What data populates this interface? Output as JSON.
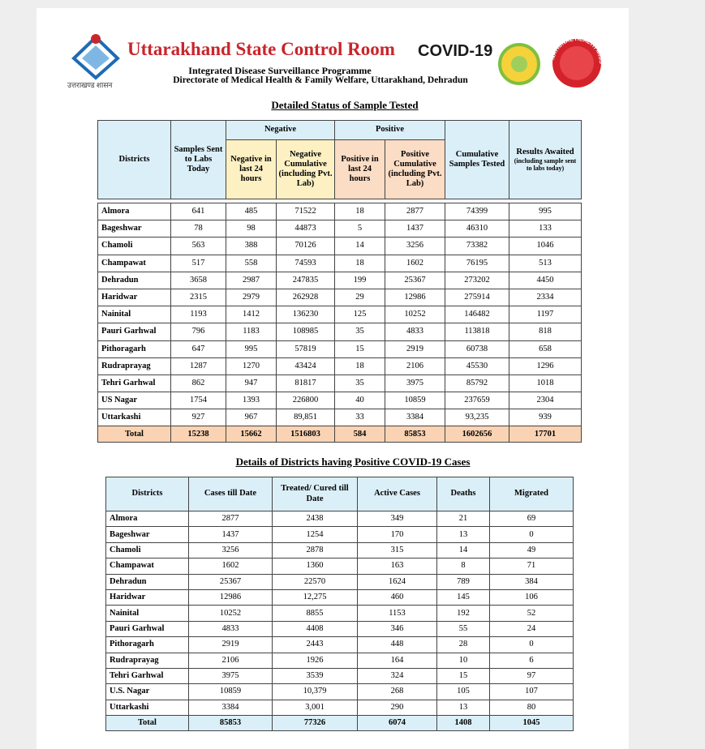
{
  "header": {
    "title": "Uttarakhand State Control Room",
    "covid": "COVID-19",
    "subtitle": "Integrated Disease Surveillance Programme",
    "directorate": "Directorate of Medical Health & Family Welfare, Uttarakhand, Dehradun",
    "govt_label": "उत्तराखण्ड शासन",
    "nhm": "NATIONAL HEALTH MISSION"
  },
  "table1": {
    "title": "Detailed Status of Sample Tested",
    "group_headers": [
      "Negative",
      "Positive"
    ],
    "columns": [
      "Districts",
      "Samples Sent to Labs Today",
      "Negative in last 24 hours",
      "Negative Cumulative (including Pvt. Lab)",
      "Positive in last 24 hours",
      "Positive Cumulative (including Pvt. Lab)",
      "Cumulative Samples Tested",
      "Results Awaited"
    ],
    "results_note": "(including sample sent to labs today)",
    "rows": [
      [
        "Almora",
        641,
        485,
        71522,
        18,
        2877,
        74399,
        995
      ],
      [
        "Bageshwar",
        78,
        98,
        44873,
        5,
        1437,
        46310,
        133
      ],
      [
        "Chamoli",
        563,
        388,
        70126,
        14,
        3256,
        73382,
        1046
      ],
      [
        "Champawat",
        517,
        558,
        74593,
        18,
        1602,
        76195,
        513
      ],
      [
        "Dehradun",
        3658,
        2987,
        247835,
        199,
        25367,
        273202,
        4450
      ],
      [
        "Haridwar",
        2315,
        2979,
        262928,
        29,
        12986,
        275914,
        2334
      ],
      [
        "Nainital",
        1193,
        1412,
        136230,
        125,
        10252,
        146482,
        1197
      ],
      [
        "Pauri Garhwal",
        796,
        1183,
        108985,
        35,
        4833,
        113818,
        818
      ],
      [
        "Pithoragarh",
        647,
        995,
        57819,
        15,
        2919,
        60738,
        658
      ],
      [
        "Rudraprayag",
        1287,
        1270,
        43424,
        18,
        2106,
        45530,
        1296
      ],
      [
        "Tehri Garhwal",
        862,
        947,
        81817,
        35,
        3975,
        85792,
        1018
      ],
      [
        "US Nagar",
        1754,
        1393,
        226800,
        40,
        10859,
        237659,
        2304
      ],
      [
        "Uttarkashi",
        927,
        967,
        "89,851",
        33,
        3384,
        "93,235",
        939
      ]
    ],
    "total": [
      "Total",
      15238,
      15662,
      1516803,
      584,
      85853,
      1602656,
      17701
    ]
  },
  "table2": {
    "title": "Details of Districts having Positive COVID-19 Cases",
    "columns": [
      "Districts",
      "Cases till Date",
      "Treated/ Cured till Date",
      "Active Cases",
      "Deaths",
      "Migrated"
    ],
    "rows": [
      [
        "Almora",
        2877,
        2438,
        349,
        21,
        69
      ],
      [
        "Bageshwar",
        1437,
        1254,
        170,
        13,
        0
      ],
      [
        "Chamoli",
        3256,
        2878,
        315,
        14,
        49
      ],
      [
        "Champawat",
        1602,
        1360,
        163,
        8,
        71
      ],
      [
        "Dehradun",
        25367,
        22570,
        1624,
        789,
        384
      ],
      [
        "Haridwar",
        12986,
        "12,275",
        460,
        145,
        106
      ],
      [
        "Nainital",
        10252,
        8855,
        1153,
        192,
        52
      ],
      [
        "Pauri Garhwal",
        4833,
        4408,
        346,
        55,
        24
      ],
      [
        "Pithoragarh",
        2919,
        2443,
        448,
        28,
        0
      ],
      [
        "Rudraprayag",
        2106,
        1926,
        164,
        10,
        6
      ],
      [
        "Tehri Garhwal",
        3975,
        3539,
        324,
        15,
        97
      ],
      [
        "U.S. Nagar",
        10859,
        "10,379",
        268,
        105,
        107
      ],
      [
        "Uttarkashi",
        3384,
        "3,001",
        290,
        13,
        80
      ]
    ],
    "total": [
      "Total",
      85853,
      77326,
      6074,
      1408,
      1045
    ]
  }
}
